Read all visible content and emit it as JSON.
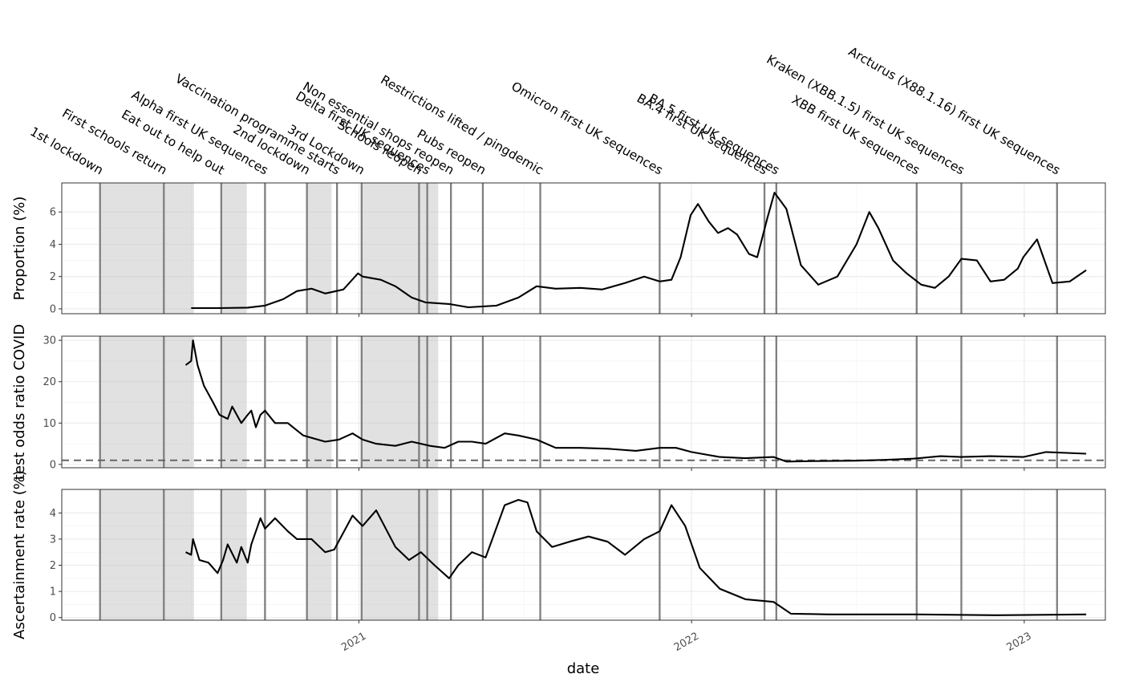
{
  "chart_data": {
    "type": "line",
    "xlabel": "date",
    "x_ticks": [
      "2021",
      "2022",
      "2023"
    ],
    "x_range": [
      "2020-02-10",
      "2023-03-31"
    ],
    "grid": true,
    "events": [
      {
        "label": "1st lockdown",
        "date": "2020-03-23"
      },
      {
        "label": "First schools return",
        "date": "2020-06-01"
      },
      {
        "label": "Eat out to help out",
        "date": "2020-08-03"
      },
      {
        "label": "Alpha first UK sequences",
        "date": "2020-09-20"
      },
      {
        "label": "2nd lockdown",
        "date": "2020-11-05"
      },
      {
        "label": "Vaccination programme starts",
        "date": "2020-12-08"
      },
      {
        "label": "3rd Lockdown",
        "date": "2021-01-04"
      },
      {
        "label": "Schools reopen",
        "date": "2021-03-08"
      },
      {
        "label": "Delta first UK sequences",
        "date": "2021-03-17"
      },
      {
        "label": "Non essential shops reopen",
        "date": "2021-04-12"
      },
      {
        "label": "Pubs reopen",
        "date": "2021-05-17"
      },
      {
        "label": "Restrictions lifted / pingdemic",
        "date": "2021-07-19"
      },
      {
        "label": "Omicron first UK sequences",
        "date": "2021-11-27"
      },
      {
        "label": "BA.4 first UK sequences",
        "date": "2022-03-22"
      },
      {
        "label": "BA.5 first UK sequences",
        "date": "2022-04-04"
      },
      {
        "label": "XBB first UK sequences",
        "date": "2022-09-05"
      },
      {
        "label": "Kraken (XBB.1.5) first UK sequences",
        "date": "2022-10-24"
      },
      {
        "label": "Arcturus (X88.1.16) first UK sequences",
        "date": "2023-02-06"
      }
    ],
    "shaded_periods": [
      {
        "start": "2020-03-23",
        "end": "2020-07-04"
      },
      {
        "start": "2020-08-03",
        "end": "2020-08-31"
      },
      {
        "start": "2020-11-05",
        "end": "2020-12-02"
      },
      {
        "start": "2021-01-04",
        "end": "2021-03-29"
      }
    ],
    "panels": [
      {
        "ylabel": "Proportion (%)",
        "ylim": [
          -0.3,
          7.8
        ],
        "yticks": [
          0,
          2,
          4,
          6
        ],
        "series": [
          {
            "x": [
              "2020-07-01",
              "2020-08-01",
              "2020-09-01",
              "2020-09-20",
              "2020-10-10",
              "2020-10-25",
              "2020-11-10",
              "2020-11-25",
              "2020-12-15",
              "2020-12-31",
              "2021-01-05",
              "2021-01-25",
              "2021-02-10",
              "2021-02-28",
              "2021-03-15",
              "2021-04-10",
              "2021-05-01",
              "2021-06-01",
              "2021-06-25",
              "2021-07-15",
              "2021-08-05",
              "2021-09-01",
              "2021-09-25",
              "2021-10-20",
              "2021-11-10",
              "2021-11-27",
              "2021-12-10",
              "2021-12-20",
              "2021-12-31",
              "2022-01-08",
              "2022-01-20",
              "2022-01-30",
              "2022-02-10",
              "2022-02-20",
              "2022-03-05",
              "2022-03-14",
              "2022-03-25",
              "2022-04-02",
              "2022-04-15",
              "2022-05-01",
              "2022-05-20",
              "2022-06-10",
              "2022-07-01",
              "2022-07-15",
              "2022-07-25",
              "2022-08-10",
              "2022-08-25",
              "2022-09-10",
              "2022-09-25",
              "2022-10-10",
              "2022-10-24",
              "2022-11-10",
              "2022-11-25",
              "2022-12-10",
              "2022-12-25",
              "2022-12-31",
              "2023-01-15",
              "2023-02-01",
              "2023-02-20",
              "2023-03-10"
            ],
            "y": [
              0.05,
              0.05,
              0.08,
              0.2,
              0.6,
              1.1,
              1.25,
              0.95,
              1.2,
              2.2,
              2.0,
              1.8,
              1.4,
              0.7,
              0.4,
              0.3,
              0.1,
              0.2,
              0.7,
              1.4,
              1.25,
              1.3,
              1.2,
              1.6,
              2.0,
              1.7,
              1.8,
              3.2,
              5.8,
              6.5,
              5.4,
              4.7,
              5.0,
              4.6,
              3.4,
              3.2,
              5.6,
              7.2,
              6.2,
              2.7,
              1.5,
              2.0,
              4.0,
              6.0,
              5.0,
              3.0,
              2.2,
              1.5,
              1.3,
              2.0,
              3.1,
              3.0,
              1.7,
              1.8,
              2.5,
              3.2,
              4.3,
              1.6,
              1.7,
              2.4
            ]
          }
        ]
      },
      {
        "ylabel": "test odds ratio COVID",
        "ylim": [
          -0.8,
          31
        ],
        "yticks": [
          0,
          10,
          20,
          30
        ],
        "reference_line": 1,
        "series": [
          {
            "x": [
              "2020-06-25",
              "2020-07-01",
              "2020-07-03",
              "2020-07-08",
              "2020-07-15",
              "2020-07-25",
              "2020-08-01",
              "2020-08-10",
              "2020-08-15",
              "2020-08-25",
              "2020-09-01",
              "2020-09-05",
              "2020-09-10",
              "2020-09-15",
              "2020-09-20",
              "2020-10-01",
              "2020-10-15",
              "2020-11-01",
              "2020-11-25",
              "2020-12-10",
              "2020-12-25",
              "2021-01-05",
              "2021-01-20",
              "2021-02-10",
              "2021-02-28",
              "2021-03-20",
              "2021-04-05",
              "2021-04-20",
              "2021-05-05",
              "2021-05-20",
              "2021-06-10",
              "2021-06-25",
              "2021-07-15",
              "2021-08-05",
              "2021-09-01",
              "2021-10-01",
              "2021-11-01",
              "2021-11-27",
              "2021-12-15",
              "2022-01-01",
              "2022-02-01",
              "2022-03-01",
              "2022-04-01",
              "2022-04-15",
              "2022-05-15",
              "2022-07-01",
              "2022-08-01",
              "2022-09-01",
              "2022-10-01",
              "2022-10-24",
              "2022-11-25",
              "2022-12-31",
              "2023-01-25",
              "2023-03-10"
            ],
            "y": [
              24,
              25,
              30,
              24,
              19,
              15,
              12,
              11,
              14,
              10,
              12,
              13,
              9,
              12,
              13,
              10,
              10,
              7,
              5.5,
              6,
              7.5,
              6,
              5,
              4.5,
              5.5,
              4.5,
              4,
              5.5,
              5.5,
              5,
              7.5,
              7,
              6,
              4,
              4,
              3.8,
              3.3,
              4,
              4,
              3,
              1.8,
              1.5,
              1.8,
              0.7,
              0.8,
              0.9,
              1.1,
              1.4,
              2,
              1.8,
              2,
              1.8,
              3,
              2.6
            ]
          }
        ]
      },
      {
        "ylabel": "Ascertainment rate (%)",
        "ylim": [
          -0.1,
          4.9
        ],
        "yticks": [
          0,
          1,
          2,
          3,
          4
        ],
        "series": [
          {
            "x": [
              "2020-06-25",
              "2020-07-01",
              "2020-07-03",
              "2020-07-10",
              "2020-07-20",
              "2020-07-30",
              "2020-08-05",
              "2020-08-10",
              "2020-08-20",
              "2020-08-25",
              "2020-09-01",
              "2020-09-05",
              "2020-09-10",
              "2020-09-15",
              "2020-09-20",
              "2020-10-01",
              "2020-10-15",
              "2020-10-25",
              "2020-11-10",
              "2020-11-25",
              "2020-12-05",
              "2020-12-25",
              "2021-01-05",
              "2021-01-20",
              "2021-02-10",
              "2021-02-25",
              "2021-03-10",
              "2021-03-25",
              "2021-04-10",
              "2021-04-20",
              "2021-05-05",
              "2021-05-20",
              "2021-06-10",
              "2021-06-25",
              "2021-07-05",
              "2021-07-15",
              "2021-08-01",
              "2021-08-20",
              "2021-09-10",
              "2021-10-01",
              "2021-10-20",
              "2021-11-10",
              "2021-11-27",
              "2021-12-10",
              "2021-12-25",
              "2022-01-10",
              "2022-02-01",
              "2022-03-01",
              "2022-04-01",
              "2022-04-20",
              "2022-06-01",
              "2022-09-01",
              "2022-12-01",
              "2023-03-10"
            ],
            "y": [
              2.5,
              2.4,
              3.0,
              2.2,
              2.1,
              1.7,
              2.2,
              2.8,
              2.1,
              2.7,
              2.1,
              2.8,
              3.3,
              3.8,
              3.4,
              3.8,
              3.3,
              3.0,
              3.0,
              2.5,
              2.6,
              3.9,
              3.5,
              4.1,
              2.7,
              2.2,
              2.5,
              2.0,
              1.5,
              2.0,
              2.5,
              2.3,
              4.3,
              4.5,
              4.4,
              3.3,
              2.7,
              2.9,
              3.1,
              2.9,
              2.4,
              3.0,
              3.3,
              4.3,
              3.5,
              1.9,
              1.1,
              0.7,
              0.6,
              0.15,
              0.12,
              0.12,
              0.09,
              0.12
            ]
          }
        ]
      }
    ]
  }
}
